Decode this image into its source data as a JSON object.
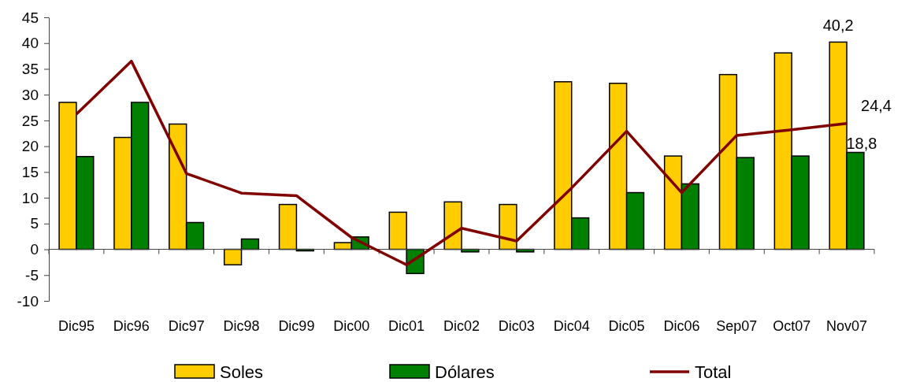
{
  "chart_data": {
    "type": "bar",
    "categories": [
      "Dic95",
      "Dic96",
      "Dic97",
      "Dic98",
      "Dic99",
      "Dic00",
      "Dic01",
      "Dic02",
      "Dic03",
      "Dic04",
      "Dic05",
      "Dic06",
      "Sep07",
      "Oct07",
      "Nov07"
    ],
    "series": [
      {
        "name": "Soles",
        "color": "#ffcc00",
        "values": [
          28.5,
          21.7,
          24.3,
          -3.0,
          8.7,
          1.3,
          7.2,
          9.2,
          8.7,
          32.5,
          32.2,
          18.1,
          33.9,
          38.1,
          40.2
        ],
        "value_labels": [
          null,
          null,
          null,
          null,
          null,
          null,
          null,
          null,
          null,
          null,
          null,
          null,
          null,
          null,
          "40,2"
        ]
      },
      {
        "name": "Dólares",
        "color": "#008000",
        "values": [
          18.0,
          28.5,
          5.2,
          2.0,
          -0.3,
          2.4,
          -4.7,
          -0.5,
          -0.5,
          6.1,
          11.0,
          12.7,
          17.8,
          18.1,
          18.8
        ],
        "value_labels": [
          null,
          null,
          null,
          null,
          null,
          null,
          null,
          null,
          null,
          null,
          null,
          null,
          null,
          null,
          "18,8"
        ]
      },
      {
        "name": "Total",
        "type": "line",
        "color": "#800000",
        "values": [
          26.2,
          36.5,
          14.7,
          10.9,
          10.4,
          2.3,
          -3.0,
          4.1,
          1.6,
          11.9,
          22.9,
          11.0,
          22.1,
          23.2,
          24.4
        ],
        "value_labels": [
          null,
          null,
          null,
          null,
          null,
          null,
          null,
          null,
          null,
          null,
          null,
          null,
          null,
          null,
          "24,4"
        ]
      }
    ],
    "ylim": [
      -10,
      45
    ],
    "yticks": [
      -10,
      -5,
      0,
      5,
      10,
      15,
      20,
      25,
      30,
      35,
      40,
      45
    ],
    "legend": "bottom"
  }
}
